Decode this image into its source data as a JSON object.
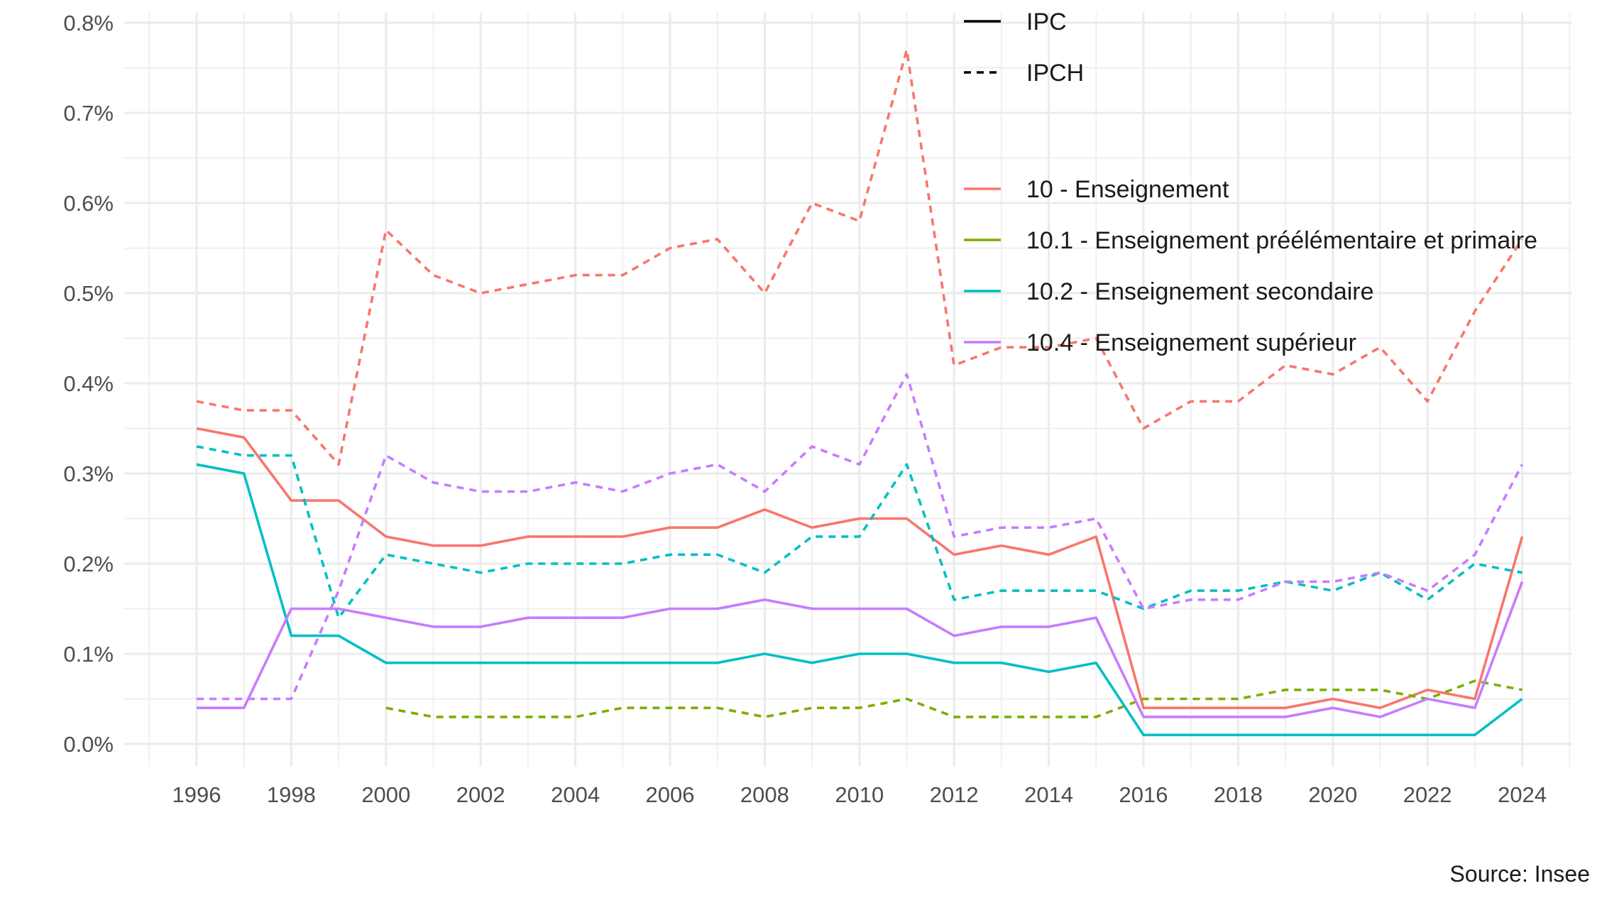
{
  "chart_data": {
    "type": "line",
    "title": "",
    "xlabel": "",
    "ylabel": "",
    "caption": "Source: Insee",
    "x": [
      1996,
      1997,
      1998,
      1999,
      2000,
      2001,
      2002,
      2003,
      2004,
      2005,
      2006,
      2007,
      2008,
      2009,
      2010,
      2011,
      2012,
      2013,
      2014,
      2015,
      2016,
      2017,
      2018,
      2019,
      2020,
      2021,
      2022,
      2023,
      2024
    ],
    "xticks": [
      "1996",
      "1998",
      "2000",
      "2002",
      "2004",
      "2006",
      "2008",
      "2010",
      "2012",
      "2014",
      "2016",
      "2018",
      "2020",
      "2022",
      "2024"
    ],
    "ylim": [
      0,
      0.8
    ],
    "yticks": [
      "0.0%",
      "0.1%",
      "0.2%",
      "0.3%",
      "0.4%",
      "0.5%",
      "0.6%",
      "0.7%",
      "0.8%"
    ],
    "grid": true,
    "legend_placement": "top-right",
    "linetype_legend": [
      {
        "label": "IPC",
        "dash": "solid"
      },
      {
        "label": "IPCH",
        "dash": "dashed"
      }
    ],
    "color_legend": [
      {
        "label": "10 - Enseignement",
        "color": "#F8766D"
      },
      {
        "label": "10.1 - Enseignement préélémentaire et primaire",
        "color": "#7CAE00"
      },
      {
        "label": "10.2 - Enseignement secondaire",
        "color": "#00BFC4"
      },
      {
        "label": "10.4 - Enseignement supérieur",
        "color": "#C77CFF"
      }
    ],
    "series": [
      {
        "group": "10 - Enseignement",
        "index": "IPC",
        "color": "#F8766D",
        "dash": "solid",
        "values": [
          0.35,
          0.34,
          0.27,
          0.27,
          0.23,
          0.22,
          0.22,
          0.23,
          0.23,
          0.23,
          0.24,
          0.24,
          0.26,
          0.24,
          0.25,
          0.25,
          0.21,
          0.22,
          0.21,
          0.23,
          0.04,
          0.04,
          0.04,
          0.04,
          0.05,
          0.04,
          0.06,
          0.05,
          0.23
        ]
      },
      {
        "group": "10 - Enseignement",
        "index": "IPCH",
        "color": "#F8766D",
        "dash": "dashed",
        "values": [
          0.38,
          0.37,
          0.37,
          0.31,
          0.57,
          0.52,
          0.5,
          0.51,
          0.52,
          0.52,
          0.55,
          0.56,
          0.5,
          0.6,
          0.58,
          0.77,
          0.42,
          0.44,
          0.44,
          0.45,
          0.35,
          0.38,
          0.38,
          0.42,
          0.41,
          0.44,
          0.38,
          0.48,
          0.56
        ]
      },
      {
        "group": "10.1 - Enseignement préélémentaire et primaire",
        "index": "IPCH",
        "color": "#7CAE00",
        "dash": "dashed",
        "values": [
          null,
          null,
          null,
          null,
          0.04,
          0.03,
          0.03,
          0.03,
          0.03,
          0.04,
          0.04,
          0.04,
          0.03,
          0.04,
          0.04,
          0.05,
          0.03,
          0.03,
          0.03,
          0.03,
          0.05,
          0.05,
          0.05,
          0.06,
          0.06,
          0.06,
          0.05,
          0.07,
          0.06
        ]
      },
      {
        "group": "10.2 - Enseignement secondaire",
        "index": "IPC",
        "color": "#00BFC4",
        "dash": "solid",
        "values": [
          0.31,
          0.3,
          0.12,
          0.12,
          0.09,
          0.09,
          0.09,
          0.09,
          0.09,
          0.09,
          0.09,
          0.09,
          0.1,
          0.09,
          0.1,
          0.1,
          0.09,
          0.09,
          0.08,
          0.09,
          0.01,
          0.01,
          0.01,
          0.01,
          0.01,
          0.01,
          0.01,
          0.01,
          0.05
        ]
      },
      {
        "group": "10.2 - Enseignement secondaire",
        "index": "IPCH",
        "color": "#00BFC4",
        "dash": "dashed",
        "values": [
          0.33,
          0.32,
          0.32,
          0.14,
          0.21,
          0.2,
          0.19,
          0.2,
          0.2,
          0.2,
          0.21,
          0.21,
          0.19,
          0.23,
          0.23,
          0.31,
          0.16,
          0.17,
          0.17,
          0.17,
          0.15,
          0.17,
          0.17,
          0.18,
          0.17,
          0.19,
          0.16,
          0.2,
          0.19
        ]
      },
      {
        "group": "10.4 - Enseignement supérieur",
        "index": "IPC",
        "color": "#C77CFF",
        "dash": "solid",
        "values": [
          0.04,
          0.04,
          0.15,
          0.15,
          0.14,
          0.13,
          0.13,
          0.14,
          0.14,
          0.14,
          0.15,
          0.15,
          0.16,
          0.15,
          0.15,
          0.15,
          0.12,
          0.13,
          0.13,
          0.14,
          0.03,
          0.03,
          0.03,
          0.03,
          0.04,
          0.03,
          0.05,
          0.04,
          0.18
        ]
      },
      {
        "group": "10.4 - Enseignement supérieur",
        "index": "IPCH",
        "color": "#C77CFF",
        "dash": "dashed",
        "values": [
          0.05,
          0.05,
          0.05,
          0.17,
          0.32,
          0.29,
          0.28,
          0.28,
          0.29,
          0.28,
          0.3,
          0.31,
          0.28,
          0.33,
          0.31,
          0.41,
          0.23,
          0.24,
          0.24,
          0.25,
          0.15,
          0.16,
          0.16,
          0.18,
          0.18,
          0.19,
          0.17,
          0.21,
          0.31
        ]
      }
    ]
  }
}
